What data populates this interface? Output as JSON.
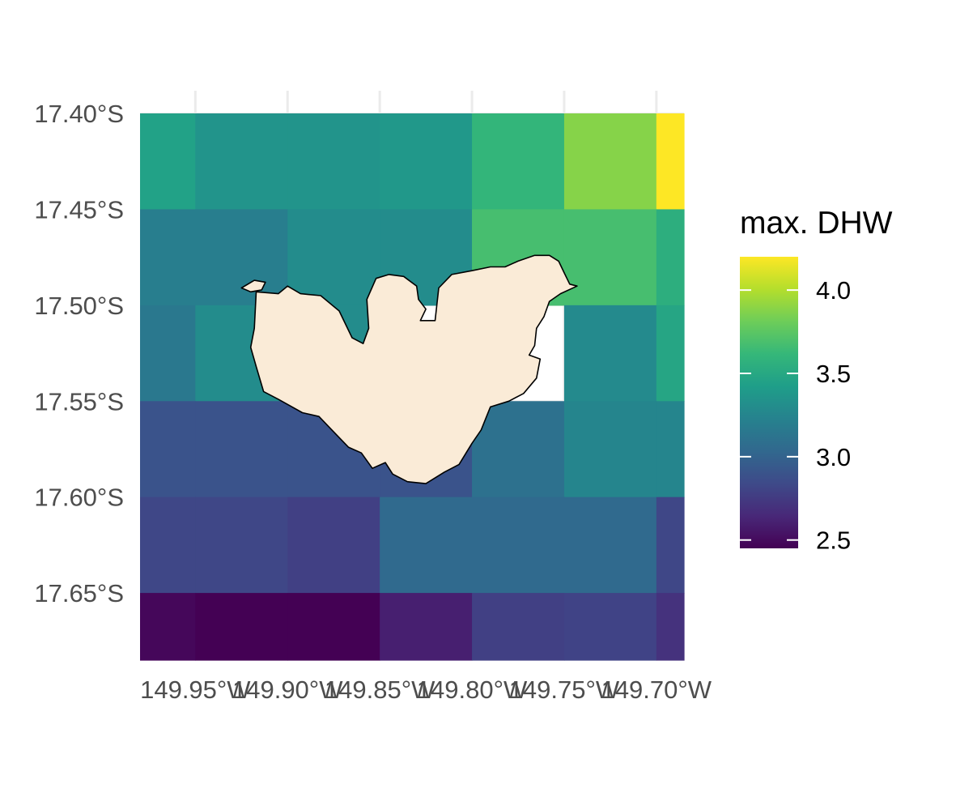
{
  "map": {
    "x_axis": {
      "lim": [
        -149.98,
        -149.685
      ],
      "ticks": [
        {
          "value": -149.95,
          "label": "149.95°W"
        },
        {
          "value": -149.9,
          "label": "149.90°W"
        },
        {
          "value": -149.85,
          "label": "149.85°W"
        },
        {
          "value": -149.8,
          "label": "149.80°W"
        },
        {
          "value": -149.75,
          "label": "149.75°W"
        },
        {
          "value": -149.7,
          "label": "149.70°W"
        }
      ]
    },
    "y_axis": {
      "lim": [
        -17.685,
        -17.4
      ],
      "ticks": [
        {
          "value": -17.4,
          "label": "17.40°S"
        },
        {
          "value": -17.45,
          "label": "17.45°S"
        },
        {
          "value": -17.5,
          "label": "17.50°S"
        },
        {
          "value": -17.55,
          "label": "17.55°S"
        },
        {
          "value": -17.6,
          "label": "17.60°S"
        },
        {
          "value": -17.65,
          "label": "17.65°S"
        }
      ]
    },
    "grid": true,
    "colormap": "viridis",
    "land_color": "#faebd7",
    "legend": {
      "title": "max. DHW",
      "position": "right",
      "min": 2.45,
      "max": 4.2,
      "ticks": [
        {
          "value": 2.5,
          "label": "2.5"
        },
        {
          "value": 3.0,
          "label": "3.0"
        },
        {
          "value": 3.5,
          "label": "3.5"
        },
        {
          "value": 4.0,
          "label": "4.0"
        }
      ]
    },
    "grid_cells": {
      "x_edges": [
        -149.98,
        -149.95,
        -149.9,
        -149.85,
        -149.8,
        -149.75,
        -149.7,
        -149.685
      ],
      "y_edges": [
        -17.4,
        -17.45,
        -17.5,
        -17.55,
        -17.6,
        -17.65,
        -17.685
      ],
      "values": [
        [
          3.45,
          3.35,
          3.35,
          3.38,
          3.6,
          3.88,
          4.2
        ],
        [
          3.2,
          3.2,
          3.3,
          3.3,
          3.68,
          3.68,
          3.55
        ],
        [
          3.15,
          3.3,
          3.3,
          null,
          null,
          3.28,
          3.48
        ],
        [
          2.9,
          2.9,
          2.9,
          2.9,
          3.1,
          3.25,
          3.25
        ],
        [
          2.82,
          2.82,
          2.78,
          3.05,
          3.05,
          3.05,
          2.82
        ],
        [
          2.48,
          2.45,
          2.45,
          2.6,
          2.78,
          2.8,
          2.7
        ]
      ]
    },
    "land": {
      "islands": [
        [
          [
            -149.917,
            -17.493
          ],
          [
            -149.905,
            -17.494
          ],
          [
            -149.9,
            -17.49
          ],
          [
            -149.893,
            -17.494
          ],
          [
            -149.882,
            -17.495
          ],
          [
            -149.872,
            -17.503
          ],
          [
            -149.865,
            -17.517
          ],
          [
            -149.859,
            -17.52
          ],
          [
            -149.856,
            -17.512
          ],
          [
            -149.857,
            -17.497
          ],
          [
            -149.852,
            -17.486
          ],
          [
            -149.845,
            -17.484
          ],
          [
            -149.837,
            -17.485
          ],
          [
            -149.83,
            -17.49
          ],
          [
            -149.829,
            -17.497
          ],
          [
            -149.825,
            -17.502
          ],
          [
            -149.828,
            -17.508
          ],
          [
            -149.82,
            -17.508
          ],
          [
            -149.818,
            -17.491
          ],
          [
            -149.811,
            -17.484
          ],
          [
            -149.8,
            -17.482
          ],
          [
            -149.79,
            -17.48
          ],
          [
            -149.782,
            -17.48
          ],
          [
            -149.775,
            -17.477
          ],
          [
            -149.766,
            -17.474
          ],
          [
            -149.758,
            -17.474
          ],
          [
            -149.753,
            -17.477
          ],
          [
            -149.75,
            -17.483
          ],
          [
            -149.747,
            -17.489
          ],
          [
            -149.743,
            -17.49
          ],
          [
            -149.752,
            -17.494
          ],
          [
            -149.758,
            -17.498
          ],
          [
            -149.761,
            -17.506
          ],
          [
            -149.765,
            -17.512
          ],
          [
            -149.766,
            -17.521
          ],
          [
            -149.769,
            -17.526
          ],
          [
            -149.763,
            -17.528
          ],
          [
            -149.765,
            -17.538
          ],
          [
            -149.772,
            -17.546
          ],
          [
            -149.78,
            -17.55
          ],
          [
            -149.79,
            -17.553
          ],
          [
            -149.795,
            -17.565
          ],
          [
            -149.8,
            -17.572
          ],
          [
            -149.807,
            -17.583
          ],
          [
            -149.815,
            -17.587
          ],
          [
            -149.825,
            -17.593
          ],
          [
            -149.835,
            -17.592
          ],
          [
            -149.843,
            -17.588
          ],
          [
            -149.847,
            -17.582
          ],
          [
            -149.854,
            -17.585
          ],
          [
            -149.86,
            -17.577
          ],
          [
            -149.867,
            -17.574
          ],
          [
            -149.875,
            -17.566
          ],
          [
            -149.883,
            -17.558
          ],
          [
            -149.892,
            -17.556
          ],
          [
            -149.905,
            -17.549
          ],
          [
            -149.913,
            -17.545
          ],
          [
            -149.917,
            -17.532
          ],
          [
            -149.92,
            -17.522
          ],
          [
            -149.918,
            -17.512
          ],
          [
            -149.917,
            -17.493
          ]
        ],
        [
          [
            -149.925,
            -17.491
          ],
          [
            -149.918,
            -17.487
          ],
          [
            -149.912,
            -17.488
          ],
          [
            -149.914,
            -17.492
          ],
          [
            -149.92,
            -17.493
          ],
          [
            -149.925,
            -17.491
          ]
        ]
      ]
    }
  }
}
